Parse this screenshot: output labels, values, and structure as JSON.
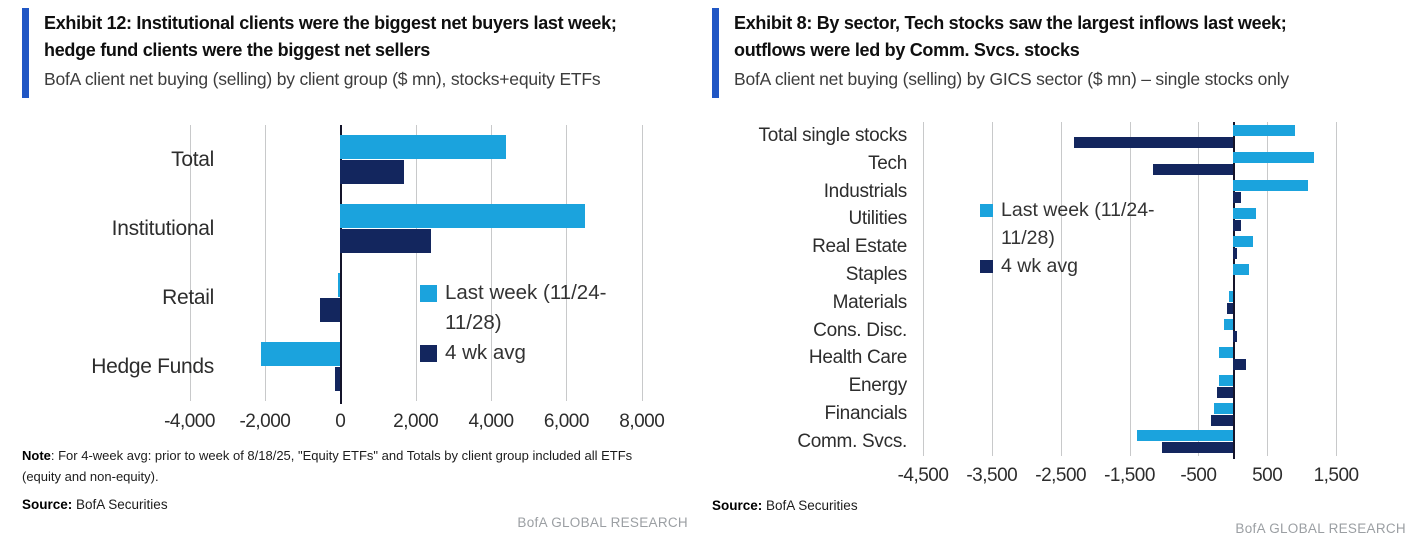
{
  "colors": {
    "light_blue": "#1BA3DD",
    "navy": "#13265E",
    "accent_blue": "#2056C4",
    "gridline": "#c8c9ca",
    "zero_axis": "#14142a",
    "brand_gray": "#9b9fa3"
  },
  "chart_data": [
    {
      "id": "exhibit-12",
      "type": "bar",
      "orientation": "horizontal",
      "title": "Exhibit 12: Institutional clients were the biggest net buyers last week; hedge fund clients were the biggest net sellers",
      "title_lines": [
        "Exhibit 12: Institutional clients were the biggest net buyers last week;",
        "hedge fund clients were the biggest net sellers"
      ],
      "subtitle": "BofA client net buying (selling) by client group ($ mn), stocks+equity ETFs",
      "categories": [
        "Total",
        "Institutional",
        "Retail",
        "Hedge Funds"
      ],
      "series": [
        {
          "name": "Last week (11/24-11/28)",
          "color_key": "light_blue",
          "values": [
            4400,
            6500,
            -50,
            -2100
          ]
        },
        {
          "name": "4 wk avg",
          "color_key": "navy",
          "values": [
            1700,
            2400,
            -550,
            -130
          ]
        }
      ],
      "x_ticks": [
        -4000,
        -2000,
        0,
        2000,
        4000,
        6000,
        8000
      ],
      "x_tick_labels": [
        "-4,000",
        "-2,000",
        "0",
        "2,000",
        "4,000",
        "6,000",
        "8,000"
      ],
      "xlim": [
        -4200,
        9200
      ],
      "grid": true,
      "legend_position": "inside-right",
      "legend": {
        "item1_line1": "Last week (11/24-",
        "item1_line2": "11/28)",
        "item2": "4 wk avg"
      },
      "note_prefix": "Note",
      "note_text": ": For 4-week avg: prior to week of 8/18/25, \"Equity ETFs\" and Totals by client group included all ETFs (equity and non-equity).",
      "source_prefix": "Source:",
      "source_text": " BofA Securities",
      "brand": "BofA GLOBAL RESEARCH"
    },
    {
      "id": "exhibit-8",
      "type": "bar",
      "orientation": "horizontal",
      "title": "Exhibit 8: By sector, Tech stocks saw the largest inflows last week; outflows were led by Comm. Svcs. stocks",
      "title_lines": [
        "Exhibit 8: By sector, Tech stocks saw the largest inflows last week;",
        "outflows were led by Comm. Svcs. stocks"
      ],
      "subtitle": "BofA client net buying (selling) by GICS sector ($ mn) – single stocks only",
      "categories": [
        "Total single stocks",
        "Tech",
        "Industrials",
        "Utilities",
        "Real Estate",
        "Staples",
        "Materials",
        "Cons. Disc.",
        "Health Care",
        "Energy",
        "Financials",
        "Comm. Svcs."
      ],
      "series": [
        {
          "name": "Last week (11/24-11/28)",
          "color_key": "light_blue",
          "values": [
            900,
            1180,
            1100,
            340,
            290,
            240,
            -60,
            -130,
            -200,
            -200,
            -280,
            -1390
          ]
        },
        {
          "name": "4 wk avg",
          "color_key": "navy",
          "values": [
            -2300,
            -1160,
            120,
            120,
            60,
            0,
            -90,
            60,
            190,
            -230,
            -320,
            -1030
          ]
        }
      ],
      "x_ticks": [
        -4500,
        -3500,
        -2500,
        -1500,
        -500,
        500,
        1500
      ],
      "x_tick_labels": [
        "-4,500",
        "-3,500",
        "-2,500",
        "-1,500",
        "-500",
        "500",
        "1,500"
      ],
      "xlim": [
        -4630,
        1760
      ],
      "grid": true,
      "legend_position": "inside-left",
      "legend": {
        "item1_line1": "Last week (11/24-",
        "item1_line2": "11/28)",
        "item2": "4 wk avg"
      },
      "source_prefix": "Source:",
      "source_text": " BofA Securities",
      "brand": "BofA GLOBAL RESEARCH"
    }
  ]
}
